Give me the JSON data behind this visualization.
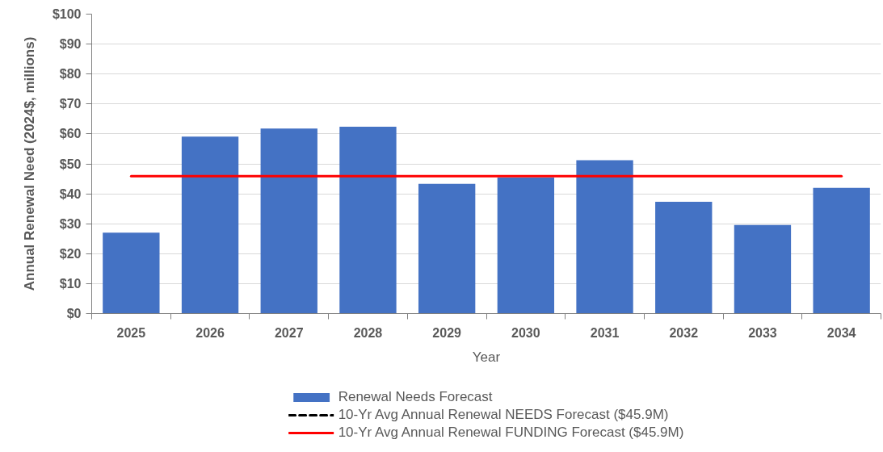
{
  "chart_data": {
    "type": "bar",
    "xlabel": "Year",
    "ylabel": "Annual Renewal Need (2024$, millions)",
    "categories": [
      "2025",
      "2026",
      "2027",
      "2028",
      "2029",
      "2030",
      "2031",
      "2032",
      "2033",
      "2034"
    ],
    "series": [
      {
        "name": "Renewal Needs Forecast",
        "color": "#4472c4",
        "values": [
          27.0,
          59.1,
          61.8,
          62.4,
          43.3,
          45.4,
          51.2,
          37.3,
          29.6,
          42.0
        ]
      },
      {
        "name": "10-Yr Avg Annual Renewal NEEDS Forecast ($45.9M)",
        "type": "line",
        "color": "#000000",
        "line_style": "dashed",
        "values": [
          null,
          null,
          null,
          null,
          null,
          null,
          null,
          null,
          null,
          null
        ]
      },
      {
        "name": "10-Yr Avg Annual Renewal FUNDING Forecast ($45.9M)",
        "type": "line",
        "color": "#ff0000",
        "line_style": "solid",
        "values": [
          45.9,
          45.9,
          45.9,
          45.9,
          45.9,
          45.9,
          45.9,
          45.9,
          45.9,
          45.9
        ]
      }
    ],
    "ylim": [
      0,
      100
    ],
    "yticks": [
      {
        "value": 0,
        "label": "$0"
      },
      {
        "value": 10,
        "label": "$10"
      },
      {
        "value": 20,
        "label": "$20"
      },
      {
        "value": 30,
        "label": "$30"
      },
      {
        "value": 40,
        "label": "$40"
      },
      {
        "value": 50,
        "label": "$50"
      },
      {
        "value": 60,
        "label": "$60"
      },
      {
        "value": 70,
        "label": "$70"
      },
      {
        "value": 80,
        "label": "$80"
      },
      {
        "value": 90,
        "label": "$90"
      },
      {
        "value": 100,
        "label": "$100"
      }
    ],
    "grid": "y",
    "legend": "bottom"
  }
}
